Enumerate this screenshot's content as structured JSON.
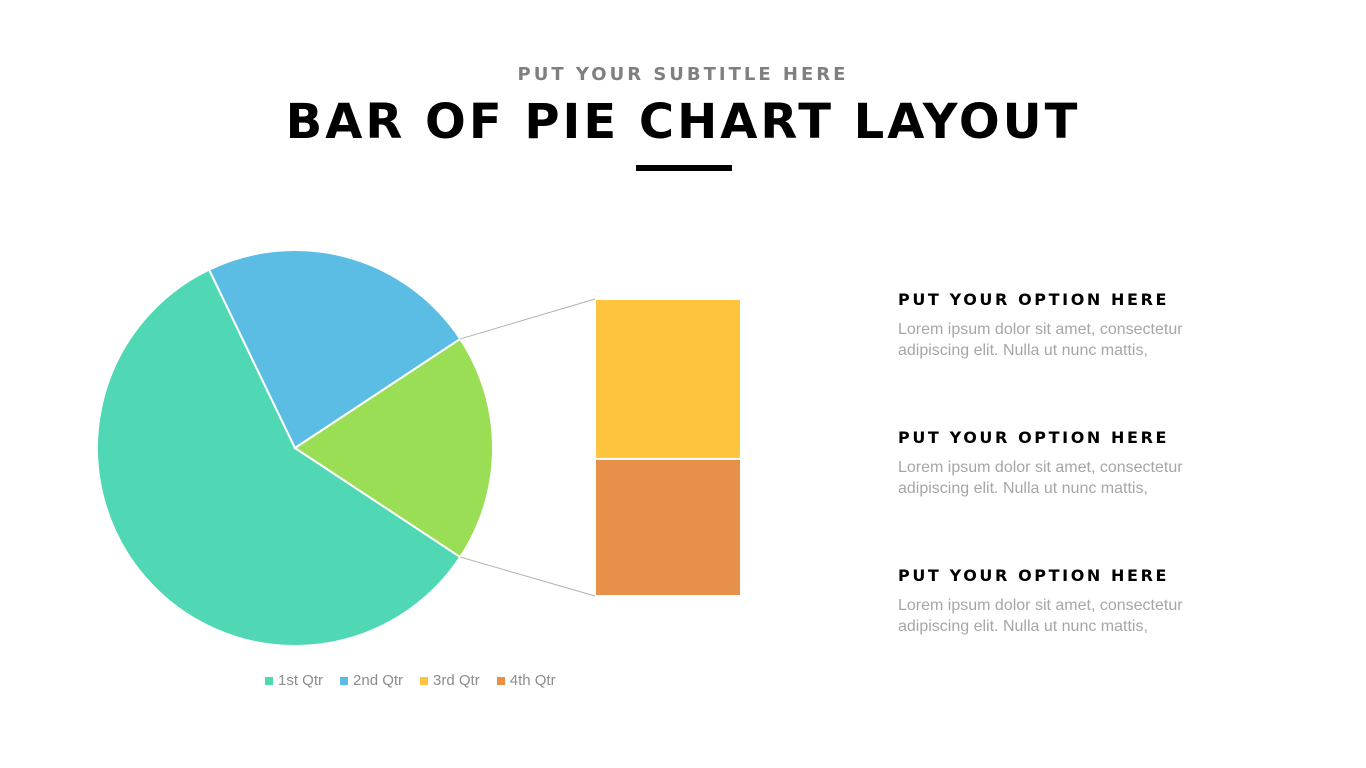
{
  "header": {
    "subtitle": "PUT YOUR SUBTITLE HERE",
    "title": "BAR OF PIE CHART LAYOUT"
  },
  "chart_data": {
    "type": "bar-of-pie",
    "categories": [
      "1st Qtr",
      "2nd Qtr",
      "3rd Qtr",
      "4th Qtr"
    ],
    "values": [
      8.2,
      3.2,
      1.4,
      1.2
    ],
    "colors": [
      "#4FD8B3",
      "#5BBDE4",
      "#FFC43D",
      "#E6904A"
    ],
    "other_slice_color": "#9ADE56",
    "secondary_categories": [
      "3rd Qtr",
      "4th Qtr"
    ],
    "legend_position": "bottom"
  },
  "options": [
    {
      "title": "PUT YOUR OPTION HERE",
      "body": "Lorem ipsum dolor sit amet, consectetur adipiscing elit. Nulla ut nunc mattis,"
    },
    {
      "title": "PUT YOUR OPTION HERE",
      "body": "Lorem ipsum dolor sit amet, consectetur adipiscing elit. Nulla ut nunc mattis,"
    },
    {
      "title": "PUT YOUR OPTION HERE",
      "body": "Lorem ipsum dolor sit amet, consectetur adipiscing elit. Nulla ut nunc mattis,"
    }
  ]
}
